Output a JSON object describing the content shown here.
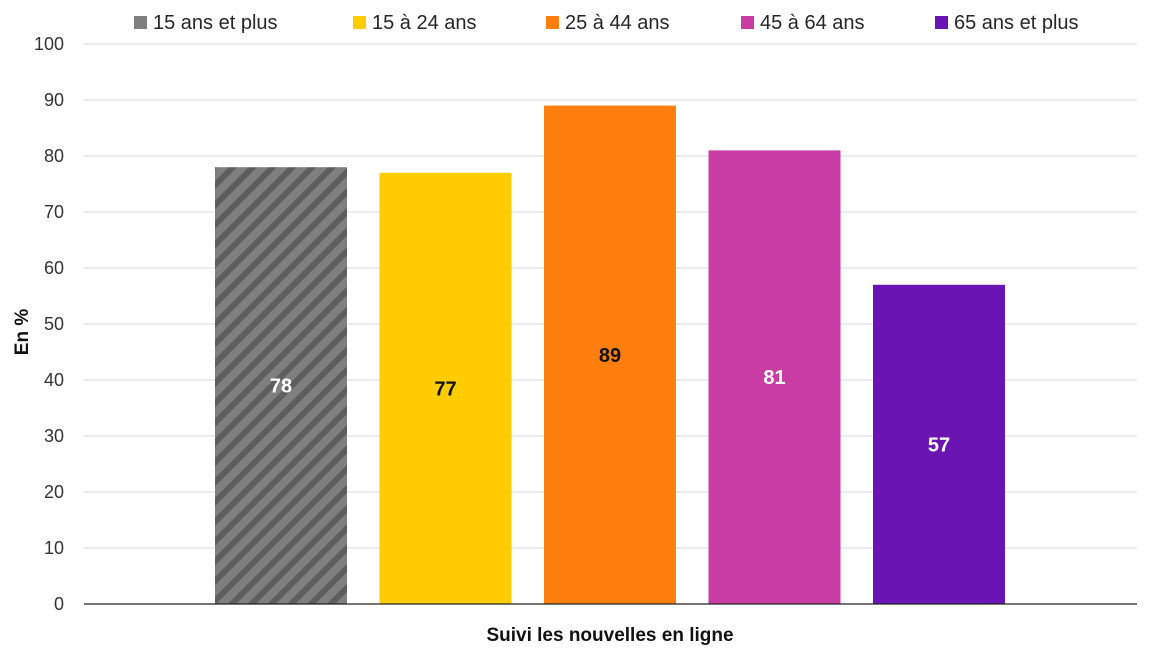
{
  "chart_data": {
    "type": "bar",
    "categories": [
      "Suivi les nouvelles en ligne"
    ],
    "series": [
      {
        "name": "15 ans et plus",
        "values": [
          78
        ],
        "color": "#7f7f7f",
        "pattern": "diagonal-stripes",
        "label_color": "#ffffff"
      },
      {
        "name": "15 à 24 ans",
        "values": [
          77
        ],
        "color": "#ffcc00",
        "label_color": "#111111"
      },
      {
        "name": "25 à 44 ans",
        "values": [
          89
        ],
        "color": "#ff7f0e",
        "label_color": "#111111"
      },
      {
        "name": "45 à 64 ans",
        "values": [
          81
        ],
        "color": "#c83ca3",
        "label_color": "#ffffff"
      },
      {
        "name": "65 ans et plus",
        "values": [
          57
        ],
        "color": "#6a14b3",
        "label_color": "#ffffff"
      }
    ],
    "xlabel": "Suivi les nouvelles en ligne",
    "ylabel": "En %",
    "ylim": [
      0,
      100
    ],
    "yticks": [
      0,
      10,
      20,
      30,
      40,
      50,
      60,
      70,
      80,
      90,
      100
    ],
    "grid": true,
    "legend": "top"
  }
}
